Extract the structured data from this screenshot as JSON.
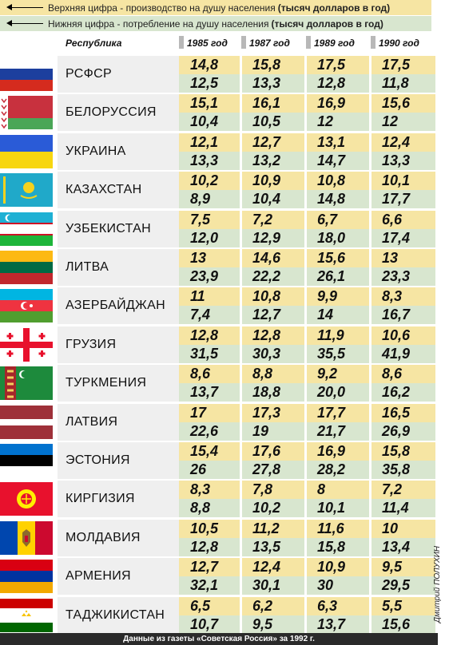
{
  "legend": [
    {
      "text": "Верхняя цифра - производство на душу населения",
      "bold": "(тысяч долларов в год)"
    },
    {
      "text": "Нижняя цифра - потребление на душу населения",
      "bold": "(тысяч долларов в год)"
    }
  ],
  "header": {
    "republic": "Республика",
    "years": [
      "1985 год",
      "1987 год",
      "1989 год",
      "1990 год"
    ]
  },
  "rows": [
    {
      "name": "РСФСР",
      "flag": "russia-flag",
      "top": [
        "14,8",
        "15,8",
        "17,5",
        "17,5"
      ],
      "bottom": [
        "12,5",
        "13,3",
        "12,8",
        "11,8"
      ]
    },
    {
      "name": "БЕЛОРУССИЯ",
      "flag": "belarus-flag",
      "top": [
        "15,1",
        "16,1",
        "16,9",
        "15,6"
      ],
      "bottom": [
        "10,4",
        "10,5",
        "12",
        "12"
      ]
    },
    {
      "name": "УКРАИНА",
      "flag": "ukraine-flag",
      "top": [
        "12,1",
        "12,7",
        "13,1",
        "12,4"
      ],
      "bottom": [
        "13,3",
        "13,2",
        "14,7",
        "13,3"
      ]
    },
    {
      "name": "КАЗАХСТАН",
      "flag": "kazakhstan-flag",
      "top": [
        "10,2",
        "10,9",
        "10,8",
        "10,1"
      ],
      "bottom": [
        "8,9",
        "10,4",
        "14,8",
        "17,7"
      ]
    },
    {
      "name": "УЗБЕКИСТАН",
      "flag": "uzbekistan-flag",
      "top": [
        "7,5",
        "7,2",
        "6,7",
        "6,6"
      ],
      "bottom": [
        "12,0",
        "12,9",
        "18,0",
        "17,4"
      ]
    },
    {
      "name": "ЛИТВА",
      "flag": "lithuania-flag",
      "top": [
        "13",
        "14,6",
        "15,6",
        "13"
      ],
      "bottom": [
        "23,9",
        "22,2",
        "26,1",
        "23,3"
      ]
    },
    {
      "name": "АЗЕРБАЙДЖАН",
      "flag": "azerbaijan-flag",
      "top": [
        "11",
        "10,8",
        "9,9",
        "8,3"
      ],
      "bottom": [
        "7,4",
        "12,7",
        "14",
        "16,7"
      ]
    },
    {
      "name": "ГРУЗИЯ",
      "flag": "georgia-flag",
      "top": [
        "12,8",
        "12,8",
        "11,9",
        "10,6"
      ],
      "bottom": [
        "31,5",
        "30,3",
        "35,5",
        "41,9"
      ]
    },
    {
      "name": "ТУРКМЕНИЯ",
      "flag": "turkmenistan-flag",
      "top": [
        "8,6",
        "8,8",
        "9,2",
        "8,6"
      ],
      "bottom": [
        "13,7",
        "18,8",
        "20,0",
        "16,2"
      ]
    },
    {
      "name": "ЛАТВИЯ",
      "flag": "latvia-flag",
      "top": [
        "17",
        "17,3",
        "17,7",
        "16,5"
      ],
      "bottom": [
        "22,6",
        "19",
        "21,7",
        "26,9"
      ]
    },
    {
      "name": "ЭСТОНИЯ",
      "flag": "estonia-flag",
      "top": [
        "15,4",
        "17,6",
        "16,9",
        "15,8"
      ],
      "bottom": [
        "26",
        "27,8",
        "28,2",
        "35,8"
      ]
    },
    {
      "name": "КИРГИЗИЯ",
      "flag": "kyrgyzstan-flag",
      "top": [
        "8,3",
        "7,8",
        "8",
        "7,2"
      ],
      "bottom": [
        "8,8",
        "10,2",
        "10,1",
        "11,4"
      ]
    },
    {
      "name": "МОЛДАВИЯ",
      "flag": "moldova-flag",
      "top": [
        "10,5",
        "11,2",
        "11,6",
        "10"
      ],
      "bottom": [
        "12,8",
        "13,5",
        "15,8",
        "13,4"
      ]
    },
    {
      "name": "АРМЕНИЯ",
      "flag": "armenia-flag",
      "top": [
        "12,7",
        "12,4",
        "10,9",
        "9,5"
      ],
      "bottom": [
        "32,1",
        "30,1",
        "30",
        "29,5"
      ]
    },
    {
      "name": "ТАДЖИКИСТАН",
      "flag": "tajikistan-flag",
      "top": [
        "6,5",
        "6,2",
        "6,3",
        "5,5"
      ],
      "bottom": [
        "10,7",
        "9,5",
        "13,7",
        "15,6"
      ]
    }
  ],
  "footer": "Данные из газеты «Советская Россия» за 1992 г.",
  "credit": "Дмитрий ПОЛУХИН",
  "colors": {
    "production": "#f6e5a3",
    "consumption": "#d8e6cf",
    "name_bg": "#efefef"
  }
}
